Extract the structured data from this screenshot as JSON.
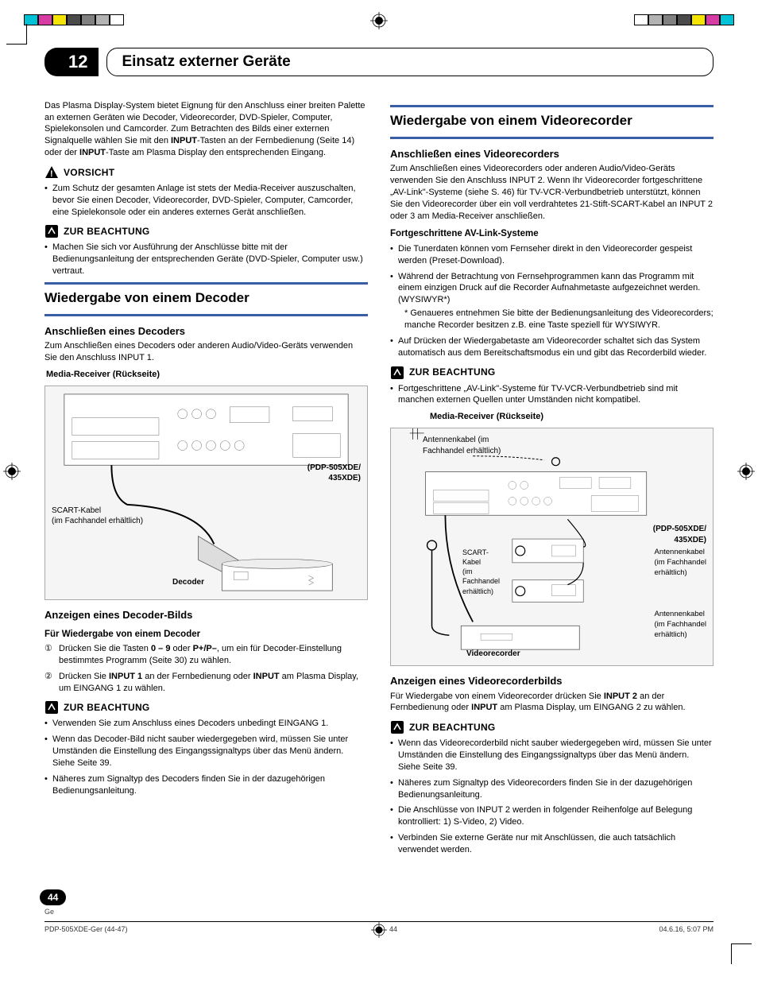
{
  "chapter": {
    "number": "12",
    "title": "Einsatz externer Geräte"
  },
  "page": {
    "number": "44",
    "lang": "Ge",
    "footer_left": "PDP-505XDE-Ger (44-47)",
    "footer_center": "44",
    "footer_right": "04.6.16, 5:07 PM"
  },
  "reg_colors_left": [
    "#00c2d6",
    "#d63ca4",
    "#f5e400",
    "#4a4a4a",
    "#808080",
    "#b3b3b3",
    "#ffffff"
  ],
  "reg_colors_right": [
    "#ffffff",
    "#b3b3b3",
    "#808080",
    "#4a4a4a",
    "#f5e400",
    "#d63ca4",
    "#00c2d6"
  ],
  "accent_color": "#3a5ea6",
  "left_col": {
    "intro": {
      "pre": "Das Plasma Display-System bietet Eignung für den Anschluss einer breiten Palette an externen Geräten wie Decoder, Videorecorder, DVD-Spieler, Computer, Spielekonsolen und Camcorder. Zum Betrachten des Bilds einer externen Signalquelle wählen Sie mit den ",
      "b1": "INPUT",
      "mid": "-Tasten an der Fernbedienung (Seite 14) oder der ",
      "b2": "INPUT",
      "post": "-Taste am Plasma Display den entsprechenden Eingang."
    },
    "vorsicht_label": "VORSICHT",
    "vorsicht_item": "Zum Schutz der gesamten Anlage ist stets der Media-Receiver auszuschalten, bevor Sie einen Decoder, Videorecorder, DVD-Spieler, Computer, Camcorder, eine Spielekonsole oder ein anderes externes Gerät anschließen.",
    "beachtung1_label": "ZUR BEACHTUNG",
    "beachtung1_item": "Machen Sie sich vor Ausführung der Anschlüsse bitte mit der Bedienungsanleitung der entsprechenden Geräte (DVD-Spieler, Computer usw.) vertraut.",
    "section_decoder": "Wiedergabe von einem Decoder",
    "sub_anschliessen": "Anschließen eines Decoders",
    "anschliessen_text": "Zum Anschließen eines Decoders oder anderen Audio/Video-Geräts verwenden Sie den Anschluss INPUT 1.",
    "diagram1": {
      "caption": "Media-Receiver (Rückseite)",
      "model": "(PDP-505XDE/\n435XDE)",
      "scart": "SCART-Kabel\n(im Fachhandel erhältlich)",
      "decoder_label": "Decoder"
    },
    "sub_anzeigen": "Anzeigen eines Decoder-Bilds",
    "subsub_wiedergabe": "Für Wiedergabe von einem Decoder",
    "steps": [
      {
        "n": "①",
        "pre": "Drücken Sie die Tasten ",
        "b1": "0 – 9",
        "mid": " oder ",
        "b2": "P+/P–",
        "post": ", um ein für Decoder-Einstellung bestimmtes Programm (Seite 30) zu wählen."
      },
      {
        "n": "②",
        "pre": "Drücken Sie ",
        "b1": "INPUT 1",
        "mid": " an der Fernbedienung oder ",
        "b2": "INPUT",
        "post": " am Plasma Display, um EINGANG 1 zu wählen."
      }
    ],
    "beachtung2_label": "ZUR BEACHTUNG",
    "beachtung2_items": [
      "Verwenden Sie zum Anschluss eines Decoders unbedingt EINGANG 1.",
      "Wenn das Decoder-Bild nicht sauber wiedergegeben wird, müssen Sie unter Umständen die Einstellung des Eingangssignaltyps über das Menü ändern. Siehe Seite 39.",
      "Näheres zum Signaltyp des Decoders finden Sie in der dazugehörigen Bedienungsanleitung."
    ]
  },
  "right_col": {
    "section_vcr": "Wiedergabe von einem Videorecorder",
    "sub_anschliessen": "Anschließen eines Videorecorders",
    "anschliessen_text": "Zum Anschließen eines Videorecorders oder anderen Audio/Video-Geräts verwenden Sie den Anschluss INPUT 2. Wenn Ihr Videorecorder fortgeschrittene „AV-Link\"-Systeme (siehe S. 46) für TV-VCR-Verbundbetrieb unterstützt, können Sie den Videorecorder über ein voll verdrahtetes 21-Stift-SCART-Kabel an INPUT 2 oder 3 am Media-Receiver anschließen.",
    "subsub_avlink": "Fortgeschrittene AV-Link-Systeme",
    "avlink_items": [
      "Die Tunerdaten können vom Fernseher direkt in den Videorecorder gespeist werden (Preset-Download).",
      "Während der Betrachtung von Fernsehprogrammen kann das Programm mit einem einzigen Druck auf die Recorder Aufnahmetaste aufgezeichnet werden. (WYSIWYR*)\n* Genaueres entnehmen Sie bitte der Bedienungsanleitung des Videorecorders; manche Recorder besitzen z.B. eine Taste speziell für WYSIWYR.",
      "Auf Drücken der Wiedergabetaste am Videorecorder schaltet sich das System automatisch aus dem Bereitschaftsmodus ein und gibt das Recorderbild wieder."
    ],
    "beachtung1_label": "ZUR BEACHTUNG",
    "beachtung1_item": "Fortgeschrittene „AV-Link\"-Systeme für TV-VCR-Verbundbetrieb sind mit manchen externen Quellen unter Umständen nicht kompatibel.",
    "diagram2": {
      "caption": "Media-Receiver (Rückseite)",
      "antenna_top": "Antennenkabel (im\nFachhandel erhältlich)",
      "model": "(PDP-505XDE/\n435XDE)",
      "scart": "SCART-\nKabel\n(im\nFachhandel\nerhältlich)",
      "antenna1": "Antennenkabel\n(im Fachhandel\nerhältlich)",
      "antenna2": "Antennenkabel\n(im Fachhandel\nerhältlich)",
      "vcr_label": "Videorecorder"
    },
    "sub_anzeigen": "Anzeigen eines Videorecorderbilds",
    "anzeigen_text": {
      "pre": "Für Wiedergabe von einem Videorecorder drücken Sie ",
      "b1": "INPUT 2",
      "mid": " an der Fernbedienung oder ",
      "b2": "INPUT",
      "post": " am Plasma Display, um EINGANG 2 zu wählen."
    },
    "beachtung2_label": "ZUR BEACHTUNG",
    "beachtung2_items": [
      "Wenn das Videorecorderbild nicht sauber wiedergegeben wird, müssen Sie unter Umständen die Einstellung des Eingangssignaltyps über das Menü ändern. Siehe Seite 39.",
      "Näheres zum Signaltyp des Videorecorders finden Sie in der dazugehörigen Bedienungsanleitung.",
      "Die Anschlüsse von INPUT 2 werden in folgender Reihenfolge auf Belegung kontrolliert: 1) S-Video, 2) Video.",
      "Verbinden Sie externe Geräte nur mit Anschlüssen, die auch tatsächlich verwendet werden."
    ]
  }
}
